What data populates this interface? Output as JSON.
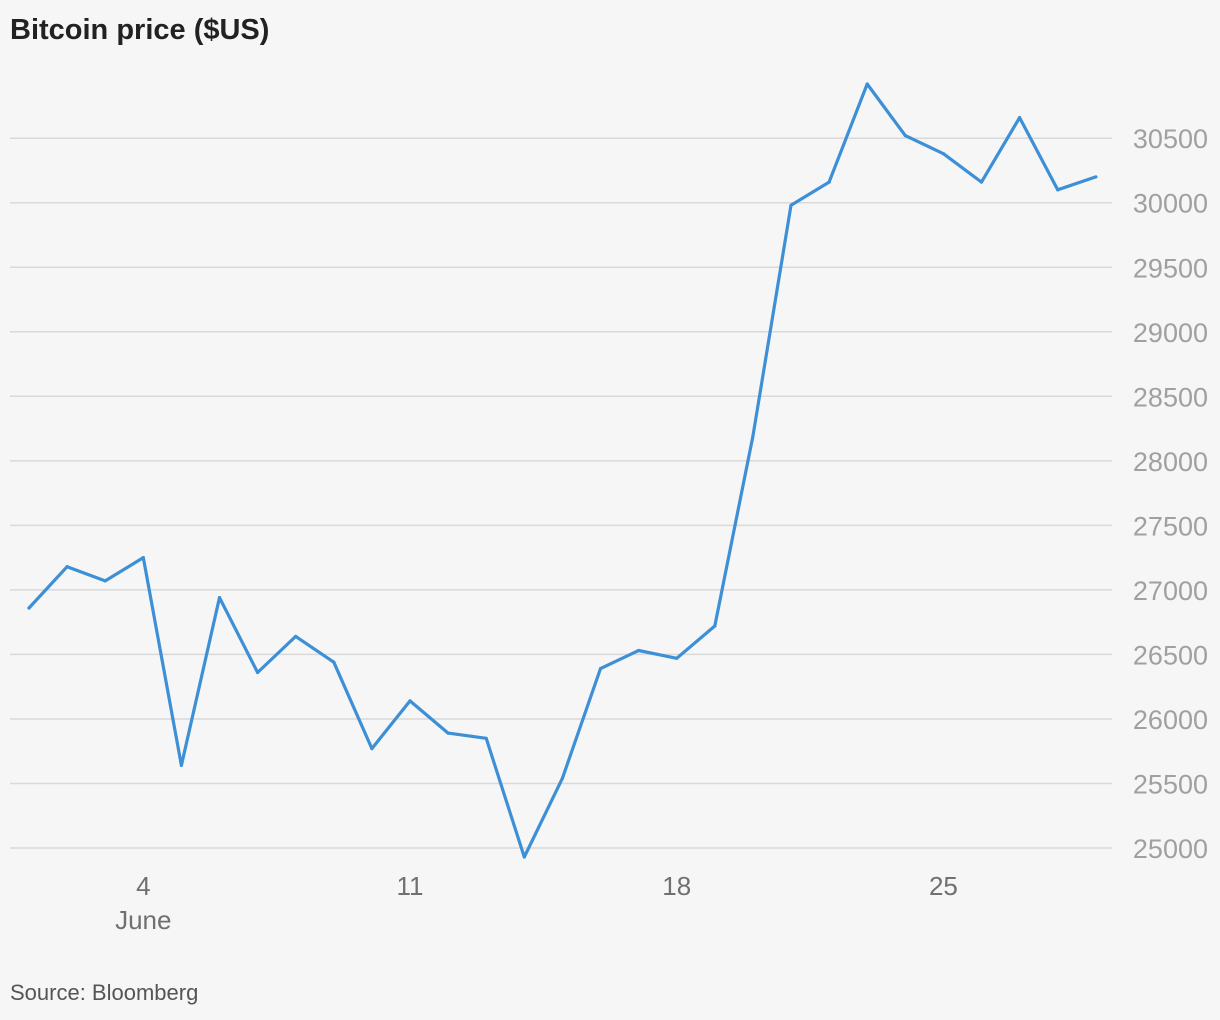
{
  "chart_data": {
    "type": "line",
    "title": "Bitcoin price ($US)",
    "source": "Source: Bloomberg",
    "xlabel": "",
    "ylabel": "",
    "x": [
      1,
      2,
      3,
      4,
      5,
      6,
      7,
      8,
      9,
      10,
      11,
      12,
      13,
      14,
      15,
      16,
      17,
      18,
      19,
      20,
      21,
      22,
      23,
      24,
      25,
      26,
      27,
      28,
      29
    ],
    "x_ticks": [
      {
        "value": 4,
        "label": "4",
        "sublabel": "June"
      },
      {
        "value": 11,
        "label": "11",
        "sublabel": ""
      },
      {
        "value": 18,
        "label": "18",
        "sublabel": ""
      },
      {
        "value": 25,
        "label": "25",
        "sublabel": ""
      }
    ],
    "xlim": [
      1,
      29
    ],
    "ylim": [
      25000,
      30920
    ],
    "y_ticks": [
      25000,
      25500,
      26000,
      26500,
      27000,
      27500,
      28000,
      28500,
      29000,
      29500,
      30000,
      30500
    ],
    "series": [
      {
        "name": "",
        "color": "#3d8fd6",
        "values": [
          26860,
          27180,
          27070,
          27250,
          25640,
          26940,
          26360,
          26640,
          26440,
          25770,
          26140,
          25890,
          25850,
          24930,
          25540,
          26390,
          26530,
          26470,
          26720,
          28190,
          29980,
          30160,
          30920,
          30520,
          30380,
          30160,
          30660,
          30100,
          30200
        ]
      }
    ],
    "grid": true,
    "y_axis_side": "right"
  }
}
